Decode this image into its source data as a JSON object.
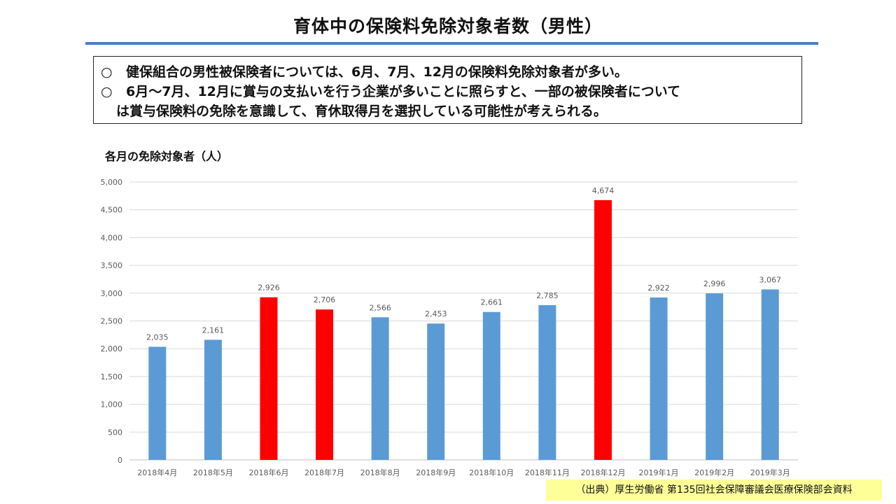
{
  "title": "育体中の保険料免除対象者数（男性）",
  "summary": {
    "mark": "○",
    "line1": "健保組合の男性被保険者については、6月、7月、12月の保険料免除対象者が多い。",
    "line2": "6月～7月、12月に賞与の支払いを行う企業が多いことに照らすと、一部の被保険者について",
    "line3": "は賞与保険料の免除を意識して、育休取得月を選択している可能性が考えられる。"
  },
  "source": "（出典）厚生労働省  第135回社会保障審議会医療保険部会資料",
  "chart_data": {
    "type": "bar",
    "title": "各月の免除対象者（人）",
    "categories": [
      "2018年4月",
      "2018年5月",
      "2018年6月",
      "2018年7月",
      "2018年8月",
      "2018年9月",
      "2018年10月",
      "2018年11月",
      "2018年12月",
      "2019年1月",
      "2019年2月",
      "2019年3月"
    ],
    "values": [
      2035,
      2161,
      2926,
      2706,
      2566,
      2453,
      2661,
      2785,
      4674,
      2922,
      2996,
      3067
    ],
    "value_labels": [
      "2,035",
      "2,161",
      "2,926",
      "2,706",
      "2,566",
      "2,453",
      "2,661",
      "2,785",
      "4,674",
      "2,922",
      "2,996",
      "3,067"
    ],
    "highlighted": [
      false,
      false,
      true,
      true,
      false,
      false,
      false,
      false,
      true,
      false,
      false,
      false
    ],
    "ylim": [
      0,
      5000
    ],
    "yticks": [
      0,
      500,
      1000,
      1500,
      2000,
      2500,
      3000,
      3500,
      4000,
      4500,
      5000
    ],
    "ytick_labels": [
      "0",
      "500",
      "1,000",
      "1,500",
      "2,000",
      "2,500",
      "3,000",
      "3,500",
      "4,000",
      "4,500",
      "5,000"
    ],
    "grid": true,
    "colors": {
      "bar": "#5b9bd5",
      "highlight": "#ff0000",
      "grid": "#d9d9d9"
    }
  }
}
